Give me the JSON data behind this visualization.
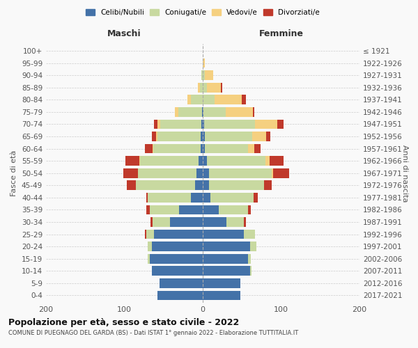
{
  "age_groups": [
    "0-4",
    "5-9",
    "10-14",
    "15-19",
    "20-24",
    "25-29",
    "30-34",
    "35-39",
    "40-44",
    "45-49",
    "50-54",
    "55-59",
    "60-64",
    "65-69",
    "70-74",
    "75-79",
    "80-84",
    "85-89",
    "90-94",
    "95-99",
    "100+"
  ],
  "birth_years": [
    "2017-2021",
    "2012-2016",
    "2007-2011",
    "2002-2006",
    "1997-2001",
    "1992-1996",
    "1987-1991",
    "1982-1986",
    "1977-1981",
    "1972-1976",
    "1967-1971",
    "1962-1966",
    "1957-1961",
    "1952-1956",
    "1947-1951",
    "1942-1946",
    "1937-1941",
    "1932-1936",
    "1927-1931",
    "1922-1926",
    "≤ 1921"
  ],
  "males": {
    "celibi": [
      58,
      55,
      65,
      68,
      65,
      62,
      42,
      30,
      15,
      10,
      8,
      5,
      3,
      3,
      2,
      1,
      0,
      0,
      0,
      0,
      0
    ],
    "coniugati": [
      0,
      0,
      0,
      2,
      5,
      10,
      22,
      38,
      55,
      75,
      75,
      75,
      60,
      55,
      52,
      30,
      15,
      4,
      2,
      0,
      0
    ],
    "vedovi": [
      0,
      0,
      0,
      0,
      0,
      0,
      0,
      0,
      0,
      0,
      0,
      1,
      1,
      2,
      4,
      5,
      5,
      2,
      0,
      0,
      0
    ],
    "divorziati": [
      0,
      0,
      0,
      0,
      0,
      2,
      3,
      4,
      2,
      12,
      18,
      18,
      10,
      5,
      4,
      0,
      0,
      0,
      0,
      0,
      0
    ]
  },
  "females": {
    "nubili": [
      48,
      48,
      60,
      58,
      60,
      52,
      30,
      20,
      10,
      8,
      8,
      5,
      3,
      3,
      2,
      1,
      0,
      0,
      0,
      0,
      0
    ],
    "coniugate": [
      0,
      0,
      2,
      3,
      8,
      15,
      22,
      38,
      55,
      70,
      80,
      75,
      55,
      60,
      65,
      28,
      15,
      5,
      3,
      0,
      0
    ],
    "vedove": [
      0,
      0,
      0,
      0,
      0,
      0,
      0,
      0,
      0,
      0,
      2,
      5,
      8,
      18,
      28,
      35,
      35,
      18,
      10,
      3,
      0
    ],
    "divorziate": [
      0,
      0,
      0,
      0,
      0,
      0,
      3,
      3,
      5,
      10,
      20,
      18,
      8,
      5,
      8,
      2,
      5,
      2,
      0,
      0,
      0
    ]
  },
  "color_celibi": "#4472a8",
  "color_coniugati": "#c8d9a0",
  "color_vedovi": "#f5d080",
  "color_divorziati": "#c0392b",
  "xlim": 200,
  "title": "Popolazione per età, sesso e stato civile - 2022",
  "subtitle": "COMUNE DI PUEGNAGO DEL GARDA (BS) - Dati ISTAT 1° gennaio 2022 - Elaborazione TUTTITALIA.IT",
  "ylabel_left": "Fasce di età",
  "ylabel_right": "Anni di nascita",
  "xlabel_left": "Maschi",
  "xlabel_right": "Femmine",
  "background_color": "#f9f9f9",
  "grid_color": "#cccccc"
}
